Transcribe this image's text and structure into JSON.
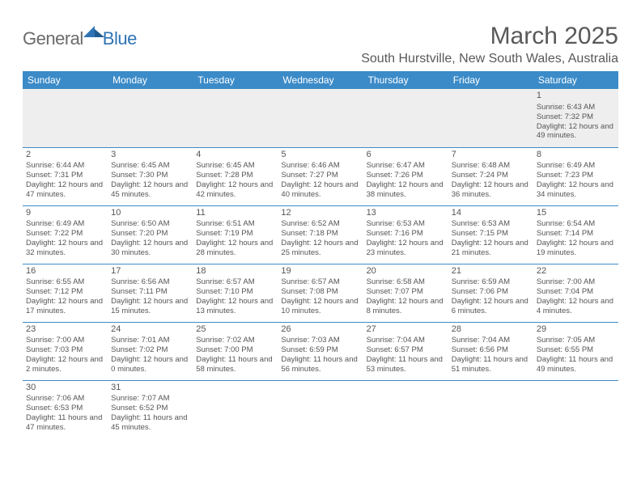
{
  "logo": {
    "part1": "General",
    "part2": "Blue"
  },
  "title": "March 2025",
  "location": "South Hurstville, New South Wales, Australia",
  "colors": {
    "header_bg": "#3b8bc8",
    "header_text": "#ffffff",
    "cell_border": "#3b8bc8",
    "text": "#555555",
    "empty_bg": "#eeeeee",
    "logo_gray": "#6a6a6a",
    "logo_blue": "#2e74b5"
  },
  "day_headers": [
    "Sunday",
    "Monday",
    "Tuesday",
    "Wednesday",
    "Thursday",
    "Friday",
    "Saturday"
  ],
  "weeks": [
    [
      null,
      null,
      null,
      null,
      null,
      null,
      {
        "n": "1",
        "sunrise": "6:43 AM",
        "sunset": "7:32 PM",
        "daylight": "12 hours and 49 minutes."
      }
    ],
    [
      {
        "n": "2",
        "sunrise": "6:44 AM",
        "sunset": "7:31 PM",
        "daylight": "12 hours and 47 minutes."
      },
      {
        "n": "3",
        "sunrise": "6:45 AM",
        "sunset": "7:30 PM",
        "daylight": "12 hours and 45 minutes."
      },
      {
        "n": "4",
        "sunrise": "6:45 AM",
        "sunset": "7:28 PM",
        "daylight": "12 hours and 42 minutes."
      },
      {
        "n": "5",
        "sunrise": "6:46 AM",
        "sunset": "7:27 PM",
        "daylight": "12 hours and 40 minutes."
      },
      {
        "n": "6",
        "sunrise": "6:47 AM",
        "sunset": "7:26 PM",
        "daylight": "12 hours and 38 minutes."
      },
      {
        "n": "7",
        "sunrise": "6:48 AM",
        "sunset": "7:24 PM",
        "daylight": "12 hours and 36 minutes."
      },
      {
        "n": "8",
        "sunrise": "6:49 AM",
        "sunset": "7:23 PM",
        "daylight": "12 hours and 34 minutes."
      }
    ],
    [
      {
        "n": "9",
        "sunrise": "6:49 AM",
        "sunset": "7:22 PM",
        "daylight": "12 hours and 32 minutes."
      },
      {
        "n": "10",
        "sunrise": "6:50 AM",
        "sunset": "7:20 PM",
        "daylight": "12 hours and 30 minutes."
      },
      {
        "n": "11",
        "sunrise": "6:51 AM",
        "sunset": "7:19 PM",
        "daylight": "12 hours and 28 minutes."
      },
      {
        "n": "12",
        "sunrise": "6:52 AM",
        "sunset": "7:18 PM",
        "daylight": "12 hours and 25 minutes."
      },
      {
        "n": "13",
        "sunrise": "6:53 AM",
        "sunset": "7:16 PM",
        "daylight": "12 hours and 23 minutes."
      },
      {
        "n": "14",
        "sunrise": "6:53 AM",
        "sunset": "7:15 PM",
        "daylight": "12 hours and 21 minutes."
      },
      {
        "n": "15",
        "sunrise": "6:54 AM",
        "sunset": "7:14 PM",
        "daylight": "12 hours and 19 minutes."
      }
    ],
    [
      {
        "n": "16",
        "sunrise": "6:55 AM",
        "sunset": "7:12 PM",
        "daylight": "12 hours and 17 minutes."
      },
      {
        "n": "17",
        "sunrise": "6:56 AM",
        "sunset": "7:11 PM",
        "daylight": "12 hours and 15 minutes."
      },
      {
        "n": "18",
        "sunrise": "6:57 AM",
        "sunset": "7:10 PM",
        "daylight": "12 hours and 13 minutes."
      },
      {
        "n": "19",
        "sunrise": "6:57 AM",
        "sunset": "7:08 PM",
        "daylight": "12 hours and 10 minutes."
      },
      {
        "n": "20",
        "sunrise": "6:58 AM",
        "sunset": "7:07 PM",
        "daylight": "12 hours and 8 minutes."
      },
      {
        "n": "21",
        "sunrise": "6:59 AM",
        "sunset": "7:06 PM",
        "daylight": "12 hours and 6 minutes."
      },
      {
        "n": "22",
        "sunrise": "7:00 AM",
        "sunset": "7:04 PM",
        "daylight": "12 hours and 4 minutes."
      }
    ],
    [
      {
        "n": "23",
        "sunrise": "7:00 AM",
        "sunset": "7:03 PM",
        "daylight": "12 hours and 2 minutes."
      },
      {
        "n": "24",
        "sunrise": "7:01 AM",
        "sunset": "7:02 PM",
        "daylight": "12 hours and 0 minutes."
      },
      {
        "n": "25",
        "sunrise": "7:02 AM",
        "sunset": "7:00 PM",
        "daylight": "11 hours and 58 minutes."
      },
      {
        "n": "26",
        "sunrise": "7:03 AM",
        "sunset": "6:59 PM",
        "daylight": "11 hours and 56 minutes."
      },
      {
        "n": "27",
        "sunrise": "7:04 AM",
        "sunset": "6:57 PM",
        "daylight": "11 hours and 53 minutes."
      },
      {
        "n": "28",
        "sunrise": "7:04 AM",
        "sunset": "6:56 PM",
        "daylight": "11 hours and 51 minutes."
      },
      {
        "n": "29",
        "sunrise": "7:05 AM",
        "sunset": "6:55 PM",
        "daylight": "11 hours and 49 minutes."
      }
    ],
    [
      {
        "n": "30",
        "sunrise": "7:06 AM",
        "sunset": "6:53 PM",
        "daylight": "11 hours and 47 minutes."
      },
      {
        "n": "31",
        "sunrise": "7:07 AM",
        "sunset": "6:52 PM",
        "daylight": "11 hours and 45 minutes."
      },
      null,
      null,
      null,
      null,
      null
    ]
  ],
  "labels": {
    "sunrise": "Sunrise:",
    "sunset": "Sunset:",
    "daylight": "Daylight:"
  }
}
